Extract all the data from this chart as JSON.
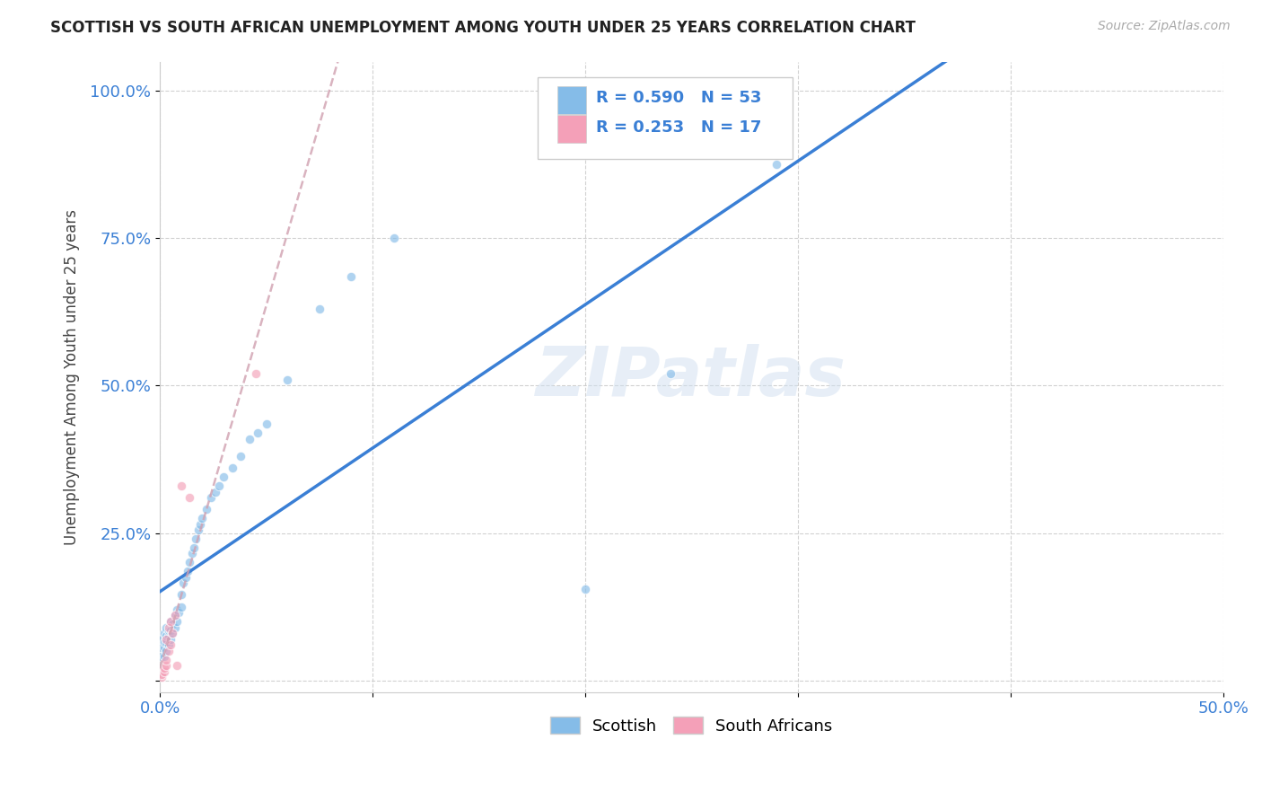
{
  "title": "SCOTTISH VS SOUTH AFRICAN UNEMPLOYMENT AMONG YOUTH UNDER 25 YEARS CORRELATION CHART",
  "source": "Source: ZipAtlas.com",
  "ylabel": "Unemployment Among Youth under 25 years",
  "x_min": 0.0,
  "x_max": 0.5,
  "y_min": -0.02,
  "y_max": 1.05,
  "scottish_color": "#85bce8",
  "sa_color": "#f4a0b8",
  "scottish_line_color": "#3a7fd5",
  "sa_line_color": "#d0a0b0",
  "legend_R_scottish": "R = 0.590",
  "legend_N_scottish": "N = 53",
  "legend_R_sa": "R = 0.253",
  "legend_N_sa": "N = 17",
  "watermark": "ZIPatlas",
  "background_color": "#ffffff",
  "grid_color": "#cccccc",
  "scottish_x": [
    0.001,
    0.001,
    0.001,
    0.002,
    0.002,
    0.002,
    0.002,
    0.003,
    0.003,
    0.003,
    0.003,
    0.004,
    0.004,
    0.004,
    0.005,
    0.005,
    0.005,
    0.006,
    0.006,
    0.007,
    0.007,
    0.008,
    0.008,
    0.009,
    0.01,
    0.01,
    0.011,
    0.012,
    0.013,
    0.014,
    0.015,
    0.016,
    0.017,
    0.018,
    0.019,
    0.02,
    0.022,
    0.024,
    0.026,
    0.028,
    0.03,
    0.034,
    0.038,
    0.042,
    0.046,
    0.05,
    0.06,
    0.075,
    0.09,
    0.11,
    0.2,
    0.24,
    0.29
  ],
  "scottish_y": [
    0.04,
    0.055,
    0.07,
    0.04,
    0.055,
    0.065,
    0.08,
    0.05,
    0.065,
    0.075,
    0.09,
    0.06,
    0.075,
    0.085,
    0.07,
    0.085,
    0.1,
    0.08,
    0.095,
    0.09,
    0.11,
    0.1,
    0.12,
    0.115,
    0.125,
    0.145,
    0.165,
    0.175,
    0.185,
    0.2,
    0.215,
    0.225,
    0.24,
    0.255,
    0.265,
    0.275,
    0.29,
    0.31,
    0.32,
    0.33,
    0.345,
    0.36,
    0.38,
    0.41,
    0.42,
    0.435,
    0.51,
    0.63,
    0.685,
    0.75,
    0.155,
    0.52,
    0.875
  ],
  "sa_x": [
    0.001,
    0.001,
    0.002,
    0.002,
    0.003,
    0.003,
    0.003,
    0.004,
    0.004,
    0.005,
    0.005,
    0.006,
    0.007,
    0.008,
    0.01,
    0.014,
    0.045
  ],
  "sa_y": [
    0.005,
    0.01,
    0.015,
    0.02,
    0.025,
    0.035,
    0.07,
    0.05,
    0.09,
    0.06,
    0.1,
    0.08,
    0.11,
    0.025,
    0.33,
    0.31,
    0.52
  ]
}
